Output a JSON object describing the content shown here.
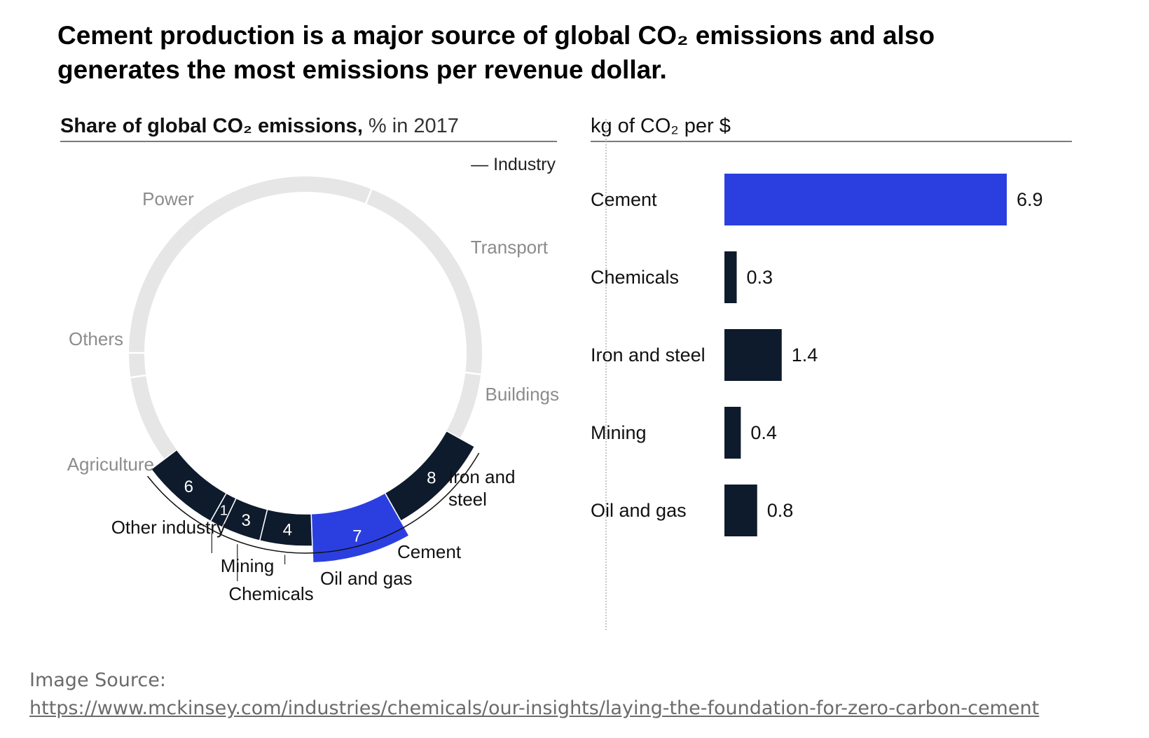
{
  "title": {
    "line1": "Cement production is a major source of global CO₂ emissions and also",
    "line2": "generates the most emissions per revenue dollar."
  },
  "colors": {
    "accent": "#2b3fe0",
    "dark": "#0e1b2c",
    "ring": "#e6e6e6",
    "muted_text": "#8c8c8c"
  },
  "left_panel": {
    "title_bold": "Share of global CO₂ emissions,",
    "title_normal": " % in 2017",
    "legend": "— Industry"
  },
  "right_panel": {
    "title": "kg of CO₂ per $"
  },
  "chart_data": [
    {
      "type": "pie",
      "variant": "donut",
      "title": "Share of global CO₂ emissions, % in 2017",
      "legend": "Industry",
      "context_segments": [
        {
          "label": "Power",
          "value": null
        },
        {
          "label": "Transport",
          "value": null
        },
        {
          "label": "Buildings",
          "value": null
        },
        {
          "label": "Agriculture",
          "value": null
        },
        {
          "label": "Others",
          "value": null
        }
      ],
      "industry_segments": [
        {
          "label": "Iron and steel",
          "value": 8
        },
        {
          "label": "Cement",
          "value": 7,
          "highlight": true
        },
        {
          "label": "Oil and gas",
          "value": 4
        },
        {
          "label": "Chemicals",
          "value": 3
        },
        {
          "label": "Mining",
          "value": 1
        },
        {
          "label": "Other industry",
          "value": 6
        }
      ]
    },
    {
      "type": "bar",
      "orientation": "horizontal",
      "title": "kg of CO₂ per $",
      "categories": [
        "Cement",
        "Chemicals",
        "Iron and steel",
        "Mining",
        "Oil and gas"
      ],
      "values": [
        6.9,
        0.3,
        1.4,
        0.4,
        0.8
      ],
      "value_labels": [
        "6.9",
        "0.3",
        "1.4",
        "0.4",
        "0.8"
      ],
      "highlight": "Cement",
      "xlim": [
        0,
        6.9
      ]
    }
  ],
  "source": {
    "label": "Image Source:",
    "url": "https://www.mckinsey.com/industries/chemicals/our-insights/laying-the-foundation-for-zero-carbon-cement"
  }
}
